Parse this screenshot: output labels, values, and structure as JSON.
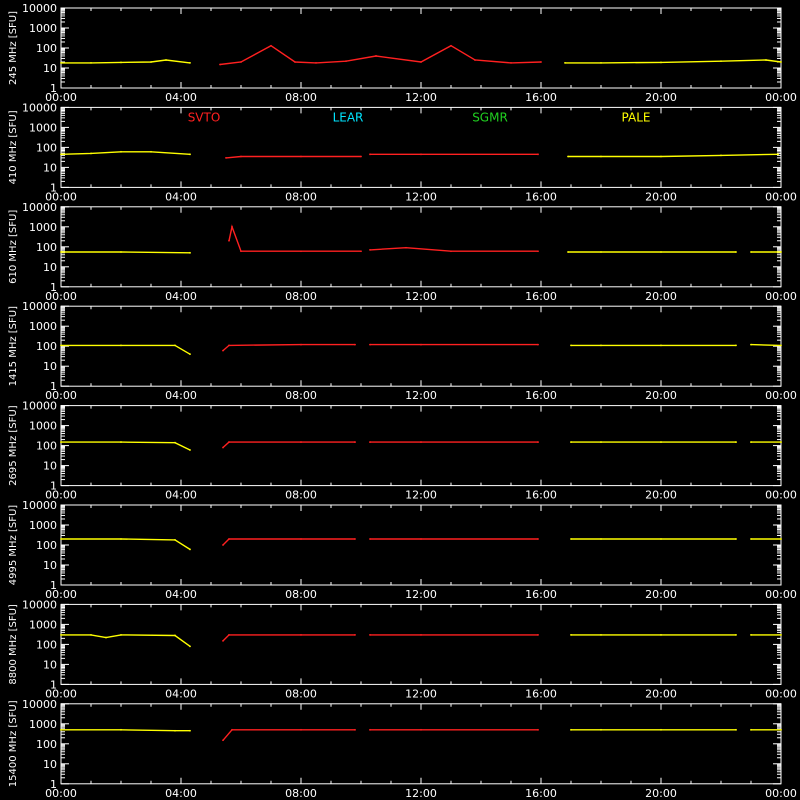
{
  "chart_data": {
    "type": "line",
    "description_note": "",
    "yscale": "log",
    "ylim": [
      1,
      10000
    ],
    "y_ticks": [
      "1",
      "10",
      "100",
      "1000",
      "10000"
    ],
    "x_ticks": [
      "00:00",
      "04:00",
      "08:00",
      "12:00",
      "16:00",
      "20:00",
      "00:00"
    ],
    "xlim_hours": [
      0,
      24
    ],
    "stations": [
      {
        "name": "SVTO",
        "color": "#ff2020"
      },
      {
        "name": "LEAR",
        "color": "#00e5ff"
      },
      {
        "name": "SGMR",
        "color": "#20d020"
      },
      {
        "name": "PALE",
        "color": "#ffff00"
      }
    ],
    "panels": [
      {
        "freq_label": "245 MHz [SFU]",
        "segments": [
          {
            "station": "PALE",
            "color": "#ffff00",
            "x": [
              0,
              1,
              2,
              3,
              3.5,
              4.3
            ],
            "y": [
              18,
              18,
              19,
              20,
              25,
              18
            ]
          },
          {
            "station": "SVTO",
            "color": "#ff2020",
            "x": [
              5.3,
              6.0,
              7.0,
              7.8,
              8.5,
              9.5,
              10.5,
              12.0,
              13.0,
              13.8,
              15.0,
              16.0
            ],
            "y": [
              15,
              20,
              130,
              20,
              18,
              22,
              40,
              20,
              130,
              25,
              18,
              20
            ]
          },
          {
            "station": "PALE",
            "color": "#ffff00",
            "x": [
              16.8,
              18.0,
              20.0,
              22.0,
              23.5,
              24.0
            ],
            "y": [
              18,
              18,
              19,
              22,
              25,
              20
            ]
          }
        ]
      },
      {
        "freq_label": "410 MHz [SFU]",
        "segments": [
          {
            "station": "PALE",
            "color": "#ffff00",
            "x": [
              0,
              1,
              2,
              3,
              4.3
            ],
            "y": [
              45,
              50,
              60,
              60,
              45
            ]
          },
          {
            "station": "SVTO",
            "color": "#ff2020",
            "x": [
              5.5,
              6.0,
              8.0,
              10.0
            ],
            "y": [
              30,
              35,
              35,
              35
            ]
          },
          {
            "station": "SVTO",
            "color": "#ff2020",
            "x": [
              10.3,
              12.0,
              15.9
            ],
            "y": [
              45,
              45,
              45
            ]
          },
          {
            "station": "PALE",
            "color": "#ffff00",
            "x": [
              16.9,
              18.0,
              20.0,
              22.0,
              23.9
            ],
            "y": [
              35,
              35,
              35,
              40,
              45
            ]
          }
        ]
      },
      {
        "freq_label": "610 MHz [SFU]",
        "segments": [
          {
            "station": "PALE",
            "color": "#ffff00",
            "x": [
              0,
              2,
              4.3
            ],
            "y": [
              55,
              55,
              50
            ]
          },
          {
            "station": "SVTO",
            "color": "#ff2020",
            "x": [
              5.6,
              5.7,
              6.0,
              8.0,
              10.0
            ],
            "y": [
              200,
              1000,
              60,
              60,
              60
            ]
          },
          {
            "station": "SVTO",
            "color": "#ff2020",
            "x": [
              10.3,
              11.5,
              13.0,
              15.9
            ],
            "y": [
              70,
              90,
              60,
              60
            ]
          },
          {
            "station": "PALE",
            "color": "#ffff00",
            "x": [
              16.9,
              18.0,
              20.0,
              22.5
            ],
            "y": [
              55,
              55,
              55,
              55
            ]
          },
          {
            "station": "PALE",
            "color": "#ffff00",
            "x": [
              23.0,
              24.0
            ],
            "y": [
              55,
              55
            ]
          }
        ]
      },
      {
        "freq_label": "1415 MHz [SFU]",
        "segments": [
          {
            "station": "PALE",
            "color": "#ffff00",
            "x": [
              0,
              2,
              3.8,
              4.3
            ],
            "y": [
              110,
              110,
              110,
              40
            ]
          },
          {
            "station": "SVTO",
            "color": "#ff2020",
            "x": [
              5.4,
              5.6,
              8.0,
              9.8
            ],
            "y": [
              60,
              110,
              120,
              120
            ]
          },
          {
            "station": "SVTO",
            "color": "#ff2020",
            "x": [
              10.3,
              12.0,
              15.9
            ],
            "y": [
              120,
              120,
              120
            ]
          },
          {
            "station": "PALE",
            "color": "#ffff00",
            "x": [
              17.0,
              18.0,
              20.0,
              22.5
            ],
            "y": [
              110,
              110,
              110,
              110
            ]
          },
          {
            "station": "PALE",
            "color": "#ffff00",
            "x": [
              23.0,
              24.0
            ],
            "y": [
              120,
              110
            ]
          }
        ]
      },
      {
        "freq_label": "2695 MHz [SFU]",
        "segments": [
          {
            "station": "PALE",
            "color": "#ffff00",
            "x": [
              0,
              2,
              3.8,
              4.3
            ],
            "y": [
              150,
              150,
              140,
              60
            ]
          },
          {
            "station": "SVTO",
            "color": "#ff2020",
            "x": [
              5.4,
              5.6,
              8.0,
              9.8
            ],
            "y": [
              80,
              150,
              150,
              150
            ]
          },
          {
            "station": "SVTO",
            "color": "#ff2020",
            "x": [
              10.3,
              12.0,
              15.9
            ],
            "y": [
              150,
              150,
              150
            ]
          },
          {
            "station": "PALE",
            "color": "#ffff00",
            "x": [
              17.0,
              18.0,
              20.0,
              22.5
            ],
            "y": [
              150,
              150,
              150,
              150
            ]
          },
          {
            "station": "PALE",
            "color": "#ffff00",
            "x": [
              23.0,
              24.0
            ],
            "y": [
              150,
              150
            ]
          }
        ]
      },
      {
        "freq_label": "4995 MHz [SFU]",
        "segments": [
          {
            "station": "PALE",
            "color": "#ffff00",
            "x": [
              0,
              2,
              3.8,
              4.3
            ],
            "y": [
              200,
              200,
              180,
              60
            ]
          },
          {
            "station": "SVTO",
            "color": "#ff2020",
            "x": [
              5.4,
              5.6,
              8.0,
              9.8
            ],
            "y": [
              100,
              200,
              200,
              200
            ]
          },
          {
            "station": "SVTO",
            "color": "#ff2020",
            "x": [
              10.3,
              12.0,
              15.9
            ],
            "y": [
              200,
              200,
              200
            ]
          },
          {
            "station": "PALE",
            "color": "#ffff00",
            "x": [
              17.0,
              18.0,
              20.0,
              22.5
            ],
            "y": [
              200,
              200,
              200,
              200
            ]
          },
          {
            "station": "PALE",
            "color": "#ffff00",
            "x": [
              23.0,
              24.0
            ],
            "y": [
              200,
              200
            ]
          }
        ]
      },
      {
        "freq_label": "8800 MHz [SFU]",
        "segments": [
          {
            "station": "PALE",
            "color": "#ffff00",
            "x": [
              0,
              1.0,
              1.5,
              2,
              3.8,
              4.3
            ],
            "y": [
              300,
              300,
              220,
              300,
              280,
              80
            ]
          },
          {
            "station": "SVTO",
            "color": "#ff2020",
            "x": [
              5.4,
              5.6,
              8.0,
              9.8
            ],
            "y": [
              150,
              300,
              300,
              300
            ]
          },
          {
            "station": "SVTO",
            "color": "#ff2020",
            "x": [
              10.3,
              12.0,
              15.9
            ],
            "y": [
              300,
              300,
              300
            ]
          },
          {
            "station": "PALE",
            "color": "#ffff00",
            "x": [
              17.0,
              18.0,
              20.0,
              22.5
            ],
            "y": [
              300,
              300,
              300,
              300
            ]
          },
          {
            "station": "PALE",
            "color": "#ffff00",
            "x": [
              23.0,
              24.0
            ],
            "y": [
              300,
              300
            ]
          }
        ]
      },
      {
        "freq_label": "15400 MHz [SFU]",
        "segments": [
          {
            "station": "PALE",
            "color": "#ffff00",
            "x": [
              0,
              2,
              3.8,
              4.3
            ],
            "y": [
              500,
              500,
              450,
              450
            ]
          },
          {
            "station": "SVTO",
            "color": "#ff2020",
            "x": [
              5.4,
              5.7,
              8.0,
              9.8
            ],
            "y": [
              150,
              500,
              500,
              500
            ]
          },
          {
            "station": "SVTO",
            "color": "#ff2020",
            "x": [
              10.3,
              12.0,
              15.9
            ],
            "y": [
              500,
              500,
              500
            ]
          },
          {
            "station": "PALE",
            "color": "#ffff00",
            "x": [
              17.0,
              18.0,
              20.0,
              22.5
            ],
            "y": [
              500,
              500,
              500,
              500
            ]
          },
          {
            "station": "PALE",
            "color": "#ffff00",
            "x": [
              23.0,
              24.0
            ],
            "y": [
              500,
              500
            ]
          }
        ]
      }
    ]
  }
}
